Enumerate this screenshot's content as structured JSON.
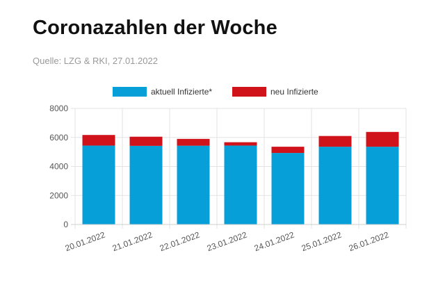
{
  "header": {
    "title": "Coronazahlen der Woche",
    "source": "Quelle: LZG & RKI, 27.01.2022"
  },
  "chart_data": {
    "type": "bar",
    "stacked": true,
    "categories": [
      "20.01.2022",
      "21.01.2022",
      "22.01.2022",
      "23.01.2022",
      "24.01.2022",
      "25.01.2022",
      "26.01.2022"
    ],
    "series": [
      {
        "name": "aktuell Infizierte*",
        "color": "#079FD8",
        "values": [
          5440,
          5420,
          5430,
          5440,
          4930,
          5360,
          5360
        ]
      },
      {
        "name": "neu Infizierte",
        "color": "#D0121B",
        "values": [
          730,
          630,
          470,
          230,
          430,
          740,
          1020
        ]
      }
    ],
    "ylim": [
      0,
      8000
    ],
    "yticks": [
      0,
      2000,
      4000,
      6000,
      8000
    ],
    "grid": true,
    "legend": "top-center"
  }
}
